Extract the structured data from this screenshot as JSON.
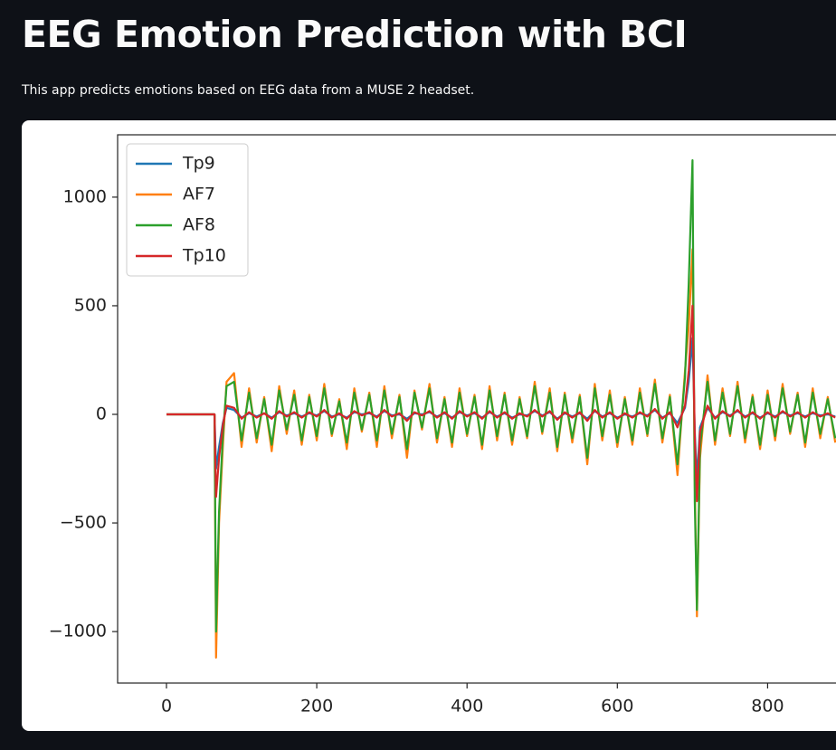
{
  "header": {
    "title": "EEG Emotion Prediction with BCI",
    "subtitle": "This app predicts emotions based on EEG data from a MUSE 2 headset."
  },
  "chart_data": {
    "type": "line",
    "legend": "upper left",
    "grid": false,
    "xlim": [
      -65,
      891
    ],
    "ylim": [
      -1237,
      1287
    ],
    "xticks": [
      0,
      200,
      400,
      600,
      800
    ],
    "yticks": [
      {
        "value": -1000,
        "label": "−1000"
      },
      {
        "value": -500,
        "label": "−500"
      },
      0,
      500,
      1000
    ],
    "x": [
      0,
      64,
      66,
      70,
      75,
      80,
      90,
      100,
      110,
      120,
      130,
      140,
      150,
      160,
      170,
      180,
      190,
      200,
      210,
      220,
      230,
      240,
      250,
      260,
      270,
      280,
      290,
      300,
      310,
      320,
      330,
      340,
      350,
      360,
      370,
      380,
      390,
      400,
      410,
      420,
      430,
      440,
      450,
      460,
      470,
      480,
      490,
      500,
      510,
      520,
      530,
      540,
      550,
      560,
      570,
      580,
      590,
      600,
      610,
      620,
      630,
      640,
      650,
      660,
      670,
      680,
      690,
      695,
      700,
      703,
      706,
      710,
      720,
      730,
      740,
      750,
      760,
      770,
      780,
      790,
      800,
      810,
      820,
      830,
      840,
      850,
      860,
      870,
      880,
      890
    ],
    "series": [
      {
        "name": "Tp9",
        "color": "#1f77b4",
        "values": [
          0,
          0,
          -250,
          -150,
          -40,
          30,
          20,
          -15,
          5,
          -10,
          5,
          -15,
          10,
          -5,
          5,
          -10,
          5,
          -5,
          15,
          -10,
          0,
          -15,
          10,
          0,
          5,
          -10,
          15,
          -5,
          0,
          -20,
          5,
          0,
          10,
          -10,
          5,
          -15,
          10,
          -5,
          5,
          -15,
          10,
          -10,
          5,
          -15,
          0,
          -5,
          15,
          -5,
          10,
          -20,
          5,
          -10,
          5,
          -20,
          15,
          -10,
          5,
          -15,
          0,
          -10,
          5,
          -5,
          20,
          -15,
          5,
          -40,
          30,
          150,
          350,
          -80,
          -300,
          -60,
          30,
          -15,
          10,
          -5,
          15,
          -10,
          5,
          -15,
          5,
          -10,
          10,
          -5,
          5,
          -10,
          5,
          -5,
          0,
          -10
        ]
      },
      {
        "name": "AF7",
        "color": "#ff7f0e",
        "values": [
          0,
          0,
          -1120,
          -500,
          -150,
          150,
          190,
          -150,
          120,
          -130,
          80,
          -170,
          130,
          -90,
          110,
          -140,
          90,
          -120,
          140,
          -100,
          70,
          -160,
          120,
          -80,
          100,
          -150,
          130,
          -110,
          90,
          -200,
          110,
          -70,
          140,
          -130,
          80,
          -150,
          120,
          -100,
          90,
          -160,
          130,
          -120,
          100,
          -140,
          80,
          -110,
          150,
          -90,
          120,
          -170,
          100,
          -130,
          90,
          -230,
          140,
          -120,
          110,
          -150,
          80,
          -140,
          120,
          -100,
          160,
          -130,
          90,
          -280,
          200,
          400,
          760,
          -300,
          -930,
          -200,
          180,
          -140,
          120,
          -100,
          150,
          -130,
          90,
          -160,
          110,
          -120,
          140,
          -90,
          100,
          -150,
          120,
          -110,
          80,
          -130
        ]
      },
      {
        "name": "AF8",
        "color": "#2ca02c",
        "values": [
          0,
          0,
          -1000,
          -450,
          -100,
          130,
          150,
          -120,
          100,
          -110,
          70,
          -140,
          110,
          -70,
          90,
          -120,
          80,
          -100,
          120,
          -90,
          60,
          -130,
          100,
          -70,
          90,
          -120,
          110,
          -90,
          80,
          -160,
          100,
          -60,
          120,
          -110,
          70,
          -130,
          100,
          -90,
          80,
          -140,
          110,
          -100,
          90,
          -120,
          70,
          -100,
          130,
          -80,
          100,
          -150,
          90,
          -110,
          80,
          -200,
          120,
          -100,
          90,
          -130,
          70,
          -120,
          100,
          -90,
          140,
          -110,
          80,
          -230,
          170,
          600,
          1170,
          -400,
          -900,
          -150,
          150,
          -120,
          100,
          -90,
          130,
          -110,
          80,
          -140,
          90,
          -100,
          120,
          -80,
          90,
          -130,
          100,
          -90,
          70,
          -110
        ]
      },
      {
        "name": "Tp10",
        "color": "#d62728",
        "values": [
          0,
          0,
          -380,
          -200,
          -50,
          40,
          30,
          -20,
          10,
          -15,
          5,
          -20,
          15,
          -10,
          10,
          -15,
          10,
          -10,
          20,
          -15,
          5,
          -20,
          15,
          -5,
          10,
          -15,
          20,
          -10,
          5,
          -30,
          10,
          -5,
          15,
          -15,
          10,
          -20,
          15,
          -10,
          10,
          -20,
          15,
          -15,
          10,
          -20,
          5,
          -10,
          20,
          -10,
          15,
          -25,
          10,
          -15,
          10,
          -30,
          20,
          -15,
          10,
          -20,
          5,
          -15,
          10,
          -10,
          25,
          -20,
          10,
          -60,
          40,
          200,
          500,
          -100,
          -400,
          -80,
          40,
          -20,
          15,
          -10,
          20,
          -15,
          10,
          -20,
          10,
          -15,
          15,
          -10,
          10,
          -15,
          10,
          -10,
          5,
          -15
        ]
      }
    ]
  }
}
